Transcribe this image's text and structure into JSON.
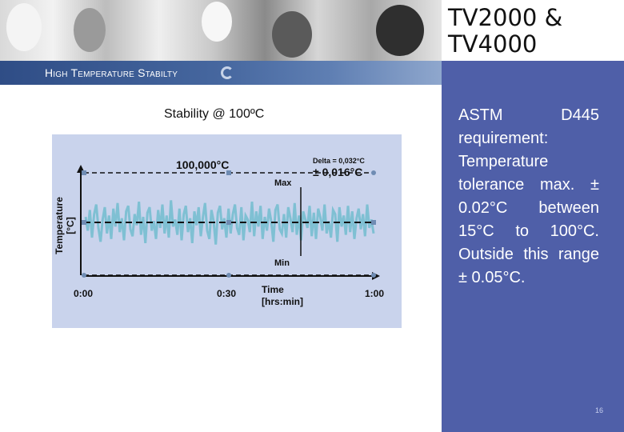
{
  "slide": {
    "title": "TV2000 & TV4000",
    "subtitle": "High Temperature Stabilty",
    "caption": "Stability @ 100ºC",
    "side_text": "ASTM D445 requirement: Temperature tolerance max. ± 0.02°C between 15°C to 100°C. Outside this range ± 0.05°C.",
    "page_number": "16"
  },
  "colors": {
    "side_panel": "#4f5fa8",
    "subtitle_bar": "#2f4d86",
    "chart_background": "#c9d3ec",
    "signal": "#7fc0d3"
  },
  "chart_data": {
    "type": "line",
    "ylabel": "Temperature\n[°C]",
    "xlabel": "Time\n[hrs:min]",
    "x_ticks": [
      "0:00",
      "0:30",
      "1:00"
    ],
    "setpoint_label": "100,000°C",
    "delta_label": "Delta = 0,032°C",
    "range_label": "± 0,016°C",
    "max_label": "Max",
    "min_label": "Min",
    "series": [
      {
        "values": [
          0.004,
          -0.006,
          0.009,
          -0.011,
          0.006,
          0.013,
          -0.004,
          -0.014,
          0.002,
          0.011,
          -0.008,
          0.005,
          -0.012,
          0.01,
          -0.003,
          0.014,
          -0.007,
          0.003,
          -0.013,
          0.008,
          0.012,
          -0.005,
          -0.01,
          0.006,
          -0.002,
          0.015,
          -0.009,
          0.004,
          -0.015,
          0.007,
          0.011,
          -0.006,
          0.001,
          -0.012,
          0.009,
          -0.004,
          0.013,
          -0.008,
          0.005,
          -0.011,
          0.016,
          -0.003,
          0.002,
          -0.009,
          0.01,
          -0.013,
          0.006,
          0.012,
          -0.007,
          0.003,
          -0.015,
          0.008,
          -0.002,
          0.011,
          -0.01,
          0.004,
          0.014,
          -0.006,
          -0.012,
          0.009,
          0.001,
          -0.016,
          0.007,
          0.012,
          -0.005,
          0.003,
          -0.011,
          0.01,
          -0.008,
          0.006,
          0.013,
          -0.004,
          -0.009,
          0.011,
          -0.013,
          0.005,
          0.002,
          -0.007,
          0.015,
          -0.01,
          0.008,
          -0.003,
          0.012,
          -0.012,
          0.004,
          -0.006,
          0.01,
          0.001,
          -0.014,
          0.009,
          0.013,
          -0.005,
          -0.008,
          0.006,
          -0.011,
          0.011,
          0.003,
          -0.007,
          0.014,
          -0.009,
          0.005,
          -0.013,
          0.008,
          0.002,
          -0.004,
          0.012,
          -0.01,
          0.007,
          -0.012,
          0.01,
          0.004,
          -0.006,
          0.013,
          -0.008,
          0.001,
          -0.011,
          0.009,
          0.006,
          -0.014,
          0.011,
          -0.003,
          0.005,
          -0.009,
          0.012,
          -0.007,
          0.008,
          -0.012,
          0.003,
          0.01,
          -0.005,
          0.006,
          -0.01,
          0.013,
          -0.004,
          0.002,
          -0.008
        ]
      }
    ]
  }
}
